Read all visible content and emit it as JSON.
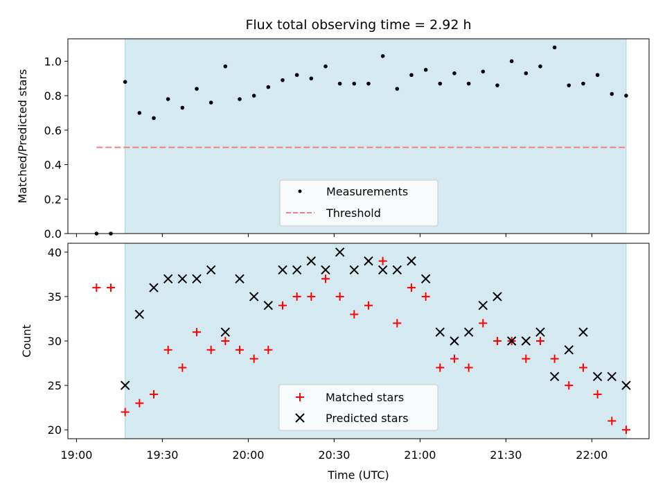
{
  "chart_data": [
    {
      "type": "scatter",
      "title": "Flux total observing time = 2.92 h",
      "xlabel": "",
      "ylabel": "Matched/Predicted stars",
      "ylim": [
        0,
        1.13
      ],
      "yticks": [
        0.0,
        0.2,
        0.4,
        0.6,
        0.8,
        1.0
      ],
      "ytick_labels": [
        "0.0",
        "0.2",
        "0.4",
        "0.6",
        "0.8",
        "1.0"
      ],
      "xlim_minutes": [
        1137,
        1340
      ],
      "observing_span": [
        "19:17",
        "22:12"
      ],
      "shade_color": "#d4eaf0",
      "legend_position": "lower-center",
      "series": [
        {
          "name": "Measurements",
          "marker": "dot",
          "color": "#000000",
          "x": [
            "19:07",
            "19:12",
            "19:17",
            "19:22",
            "19:27",
            "19:32",
            "19:37",
            "19:42",
            "19:47",
            "19:52",
            "19:57",
            "20:02",
            "20:07",
            "20:12",
            "20:17",
            "20:22",
            "20:27",
            "20:32",
            "20:37",
            "20:42",
            "20:47",
            "20:52",
            "20:57",
            "21:02",
            "21:07",
            "21:12",
            "21:17",
            "21:22",
            "21:27",
            "21:32",
            "21:37",
            "21:42",
            "21:47",
            "21:52",
            "21:57",
            "22:02",
            "22:07",
            "22:12"
          ],
          "y": [
            0.0,
            0.0,
            0.88,
            0.7,
            0.67,
            0.78,
            0.73,
            0.84,
            0.76,
            0.97,
            0.78,
            0.8,
            0.85,
            0.89,
            0.92,
            0.9,
            0.97,
            0.87,
            0.87,
            0.87,
            1.03,
            0.84,
            0.92,
            0.95,
            0.87,
            0.93,
            0.87,
            0.94,
            0.86,
            1.0,
            0.93,
            0.97,
            1.08,
            0.86,
            0.87,
            0.92,
            0.81,
            0.8
          ]
        },
        {
          "name": "Threshold",
          "marker": "dashed-line",
          "color": "#f08080",
          "x": [
            "19:07",
            "22:12"
          ],
          "y": [
            0.5,
            0.5
          ]
        }
      ]
    },
    {
      "type": "scatter",
      "title": "",
      "xlabel": "Time (UTC)",
      "ylabel": "Count",
      "ylim": [
        19,
        41
      ],
      "yticks": [
        20,
        25,
        30,
        35,
        40
      ],
      "ytick_labels": [
        "20",
        "25",
        "30",
        "35",
        "40"
      ],
      "xlim_minutes": [
        1137,
        1340
      ],
      "xticks": [
        "19:00",
        "19:30",
        "20:00",
        "20:30",
        "21:00",
        "21:30",
        "22:00"
      ],
      "observing_span": [
        "19:17",
        "22:12"
      ],
      "shade_color": "#d4eaf0",
      "legend_position": "lower-center",
      "series": [
        {
          "name": "Matched stars",
          "marker": "plus",
          "color": "#ff0000",
          "x": [
            "19:07",
            "19:12",
            "19:17",
            "19:22",
            "19:27",
            "19:32",
            "19:37",
            "19:42",
            "19:47",
            "19:52",
            "19:57",
            "20:02",
            "20:07",
            "20:12",
            "20:17",
            "20:22",
            "20:27",
            "20:32",
            "20:37",
            "20:42",
            "20:47",
            "20:52",
            "20:57",
            "21:02",
            "21:07",
            "21:12",
            "21:17",
            "21:22",
            "21:27",
            "21:32",
            "21:37",
            "21:42",
            "21:47",
            "21:52",
            "21:57",
            "22:02",
            "22:07",
            "22:12"
          ],
          "y": [
            36,
            36,
            22,
            23,
            24,
            29,
            27,
            31,
            29,
            30,
            29,
            28,
            29,
            34,
            35,
            35,
            37,
            35,
            33,
            34,
            39,
            32,
            36,
            35,
            27,
            28,
            27,
            32,
            30,
            30,
            28,
            30,
            28,
            25,
            27,
            24,
            21,
            20
          ]
        },
        {
          "name": "Predicted stars",
          "marker": "x",
          "color": "#000000",
          "x": [
            "19:17",
            "19:22",
            "19:27",
            "19:32",
            "19:37",
            "19:42",
            "19:47",
            "19:52",
            "19:57",
            "20:02",
            "20:07",
            "20:12",
            "20:17",
            "20:22",
            "20:27",
            "20:32",
            "20:37",
            "20:42",
            "20:47",
            "20:52",
            "20:57",
            "21:02",
            "21:07",
            "21:12",
            "21:17",
            "21:22",
            "21:27",
            "21:32",
            "21:37",
            "21:42",
            "21:47",
            "21:52",
            "21:57",
            "22:02",
            "22:07",
            "22:12"
          ],
          "y": [
            25,
            33,
            36,
            37,
            37,
            37,
            38,
            31,
            37,
            35,
            34,
            38,
            38,
            39,
            38,
            40,
            38,
            39,
            38,
            38,
            39,
            37,
            31,
            30,
            31,
            34,
            35,
            30,
            30,
            31,
            26,
            29,
            31,
            26,
            26,
            25
          ]
        }
      ]
    }
  ]
}
